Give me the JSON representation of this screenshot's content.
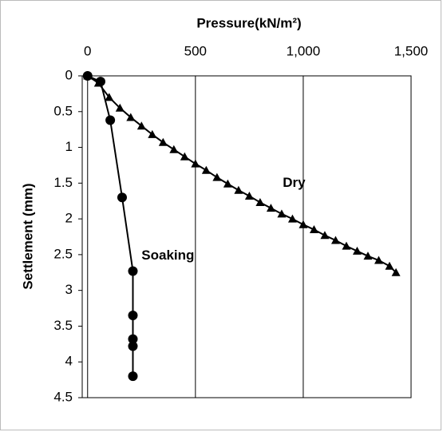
{
  "chart_data": {
    "type": "line",
    "title": "Pressure(kN/m²)",
    "y_label": "Settlement (mm)",
    "xlim": [
      -25,
      1500
    ],
    "xticks": [
      0,
      {
        "value": 500,
        "label": "500"
      },
      {
        "value": 1000,
        "label": "1,000"
      },
      {
        "value": 1500,
        "label": "1,500"
      }
    ],
    "ylim": [
      0,
      4.5
    ],
    "yticks": [
      0,
      0.5,
      1,
      1.5,
      2,
      2.5,
      3,
      3.5,
      4,
      4.5
    ],
    "y_inverted": true,
    "x_axis_top": true,
    "grid": true,
    "series": [
      {
        "name": "Dry",
        "color": "#000000",
        "marker": "triangle",
        "x": [
          0,
          50,
          100,
          150,
          200,
          250,
          300,
          350,
          400,
          450,
          500,
          550,
          600,
          650,
          700,
          750,
          800,
          850,
          900,
          950,
          1000,
          1050,
          1100,
          1150,
          1200,
          1250,
          1300,
          1350,
          1400,
          1430
        ],
        "values": [
          0,
          0.1,
          0.3,
          0.45,
          0.58,
          0.7,
          0.82,
          0.93,
          1.03,
          1.13,
          1.23,
          1.32,
          1.42,
          1.51,
          1.6,
          1.68,
          1.77,
          1.85,
          1.93,
          2.0,
          2.08,
          2.15,
          2.23,
          2.3,
          2.38,
          2.45,
          2.52,
          2.58,
          2.66,
          2.75
        ],
        "label_at": [
          905,
          1.5
        ]
      },
      {
        "name": "Soaking",
        "color": "#000000",
        "marker": "circle",
        "x": [
          0,
          60,
          105,
          160,
          210,
          210,
          210,
          210,
          210
        ],
        "values": [
          0,
          0.08,
          0.62,
          1.7,
          2.73,
          3.35,
          3.68,
          3.78,
          4.2
        ],
        "label_at": [
          250,
          2.52
        ]
      }
    ]
  }
}
